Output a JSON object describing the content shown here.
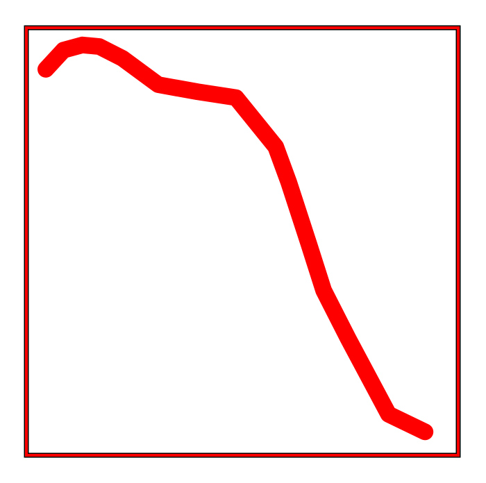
{
  "chart_data": {
    "type": "line",
    "title": "",
    "xlabel": "",
    "ylabel": "",
    "grid": false,
    "legend": "none",
    "xlim": [
      0,
      100
    ],
    "ylim": [
      0,
      100
    ],
    "series": [
      {
        "name": "line",
        "color": "#ff0000",
        "x": [
          0.0,
          4.5,
          9.3,
          13.6,
          19.5,
          28.6,
          38.6,
          48.4,
          58.5,
          61.8,
          66.9,
          70.7,
          76.9,
          87.2,
          96.5
        ],
        "y": [
          93.3,
          98.2,
          99.5,
          99.1,
          96.1,
          89.4,
          87.6,
          86.1,
          73.6,
          64.6,
          48.9,
          37.0,
          24.8,
          5.5,
          1.0
        ]
      }
    ],
    "frame_color": "#ff0000",
    "frame_outline": "#000000"
  }
}
